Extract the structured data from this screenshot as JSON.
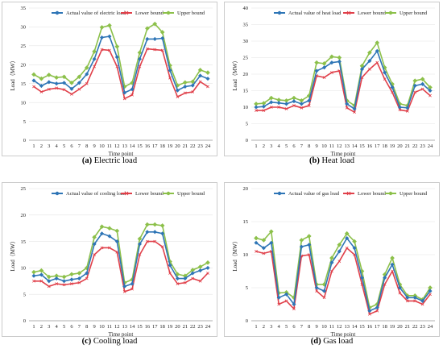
{
  "colors": {
    "actual": "#2e75b6",
    "lower": "#e0404a",
    "upper": "#8cc04a"
  },
  "chart_data": [
    {
      "type": "line",
      "caption_letter": "(a)",
      "caption_text": "Electric load",
      "xlabel": "Time point",
      "ylabel": "Load（MW）",
      "ylim": [
        0,
        35
      ],
      "yticks": [
        0,
        5,
        10,
        15,
        20,
        25,
        30,
        35
      ],
      "x": [
        1,
        2,
        3,
        4,
        5,
        6,
        7,
        8,
        9,
        10,
        11,
        12,
        13,
        14,
        15,
        16,
        17,
        18,
        19,
        20,
        21,
        22,
        23,
        24
      ],
      "legend_position": "top",
      "grid": true,
      "series": [
        {
          "name": "Actual value of electric load",
          "color_key": "actual",
          "values": [
            15.8,
            14.4,
            15.4,
            15.0,
            15.2,
            13.6,
            15.2,
            17.5,
            21.5,
            27.2,
            27.5,
            22.0,
            12.6,
            13.5,
            21.5,
            26.8,
            26.8,
            27.0,
            18.5,
            13.2,
            14.2,
            14.5,
            17.1,
            16.3
          ]
        },
        {
          "name": "Lower bound",
          "color_key": "lower",
          "values": [
            14.2,
            12.8,
            13.5,
            13.8,
            13.4,
            12.2,
            13.5,
            15.0,
            19.5,
            24.0,
            23.8,
            19.5,
            11.0,
            12.0,
            19.5,
            24.2,
            24.0,
            23.8,
            16.5,
            11.5,
            12.5,
            12.8,
            15.5,
            14.2
          ]
        },
        {
          "name": "Upper bound",
          "color_key": "upper",
          "values": [
            17.4,
            16.3,
            17.3,
            16.6,
            16.8,
            15.2,
            16.8,
            19.2,
            23.5,
            29.9,
            30.4,
            24.8,
            14.2,
            15.2,
            23.2,
            29.6,
            30.8,
            28.6,
            19.8,
            14.5,
            15.3,
            15.5,
            18.6,
            17.9
          ]
        }
      ]
    },
    {
      "type": "line",
      "caption_letter": "(b)",
      "caption_text": "Heat load",
      "xlabel": "Time point",
      "ylabel": "Load（MW）",
      "ylim": [
        0,
        40
      ],
      "yticks": [
        0,
        5,
        10,
        15,
        20,
        25,
        30,
        35,
        40
      ],
      "x": [
        1,
        2,
        3,
        4,
        5,
        6,
        7,
        8,
        9,
        10,
        11,
        12,
        13,
        14,
        15,
        16,
        17,
        18,
        19,
        20,
        21,
        22,
        23,
        24
      ],
      "legend_position": "top",
      "grid": true,
      "series": [
        {
          "name": "Actual value of heat load",
          "color_key": "actual",
          "values": [
            10.0,
            10.2,
            11.5,
            11.3,
            11.0,
            11.8,
            11.0,
            12.0,
            21.0,
            22.0,
            23.5,
            23.8,
            11.0,
            9.5,
            21.5,
            24.0,
            27.0,
            20.5,
            16.0,
            10.0,
            9.8,
            16.5,
            17.0,
            15.0
          ]
        },
        {
          "name": "Lower bound",
          "color_key": "lower",
          "values": [
            9.0,
            9.0,
            10.0,
            10.0,
            9.5,
            10.5,
            9.8,
            10.5,
            19.5,
            19.0,
            20.5,
            21.0,
            9.8,
            8.5,
            19.0,
            21.5,
            23.5,
            18.5,
            14.5,
            9.2,
            8.8,
            14.5,
            15.5,
            13.5
          ]
        },
        {
          "name": "Upper bound",
          "color_key": "upper",
          "values": [
            11.0,
            11.2,
            12.8,
            12.2,
            12.0,
            12.8,
            12.0,
            13.5,
            23.5,
            23.2,
            25.3,
            25.0,
            12.0,
            10.5,
            22.5,
            26.5,
            29.5,
            22.0,
            17.0,
            11.0,
            10.5,
            18.0,
            18.5,
            16.0
          ]
        }
      ]
    },
    {
      "type": "line",
      "caption_letter": "(c)",
      "caption_text": "Cooling load",
      "xlabel": "Time point",
      "ylabel": "Load（MW）",
      "ylim": [
        0,
        25
      ],
      "yticks": [
        0,
        5,
        10,
        15,
        20,
        25
      ],
      "x": [
        1,
        2,
        3,
        4,
        5,
        6,
        7,
        8,
        9,
        10,
        11,
        12,
        13,
        14,
        15,
        16,
        17,
        18,
        19,
        20,
        21,
        22,
        23,
        24
      ],
      "legend_position": "top",
      "grid": true,
      "series": [
        {
          "name": "Actual value of cooling load",
          "color_key": "actual",
          "values": [
            8.5,
            8.7,
            7.5,
            8.0,
            7.5,
            7.8,
            8.0,
            9.0,
            14.5,
            16.5,
            16.0,
            15.0,
            6.5,
            7.0,
            14.5,
            16.8,
            16.8,
            16.5,
            10.5,
            8.0,
            8.0,
            9.0,
            9.5,
            10.0
          ]
        },
        {
          "name": "Lower bound",
          "color_key": "lower",
          "values": [
            7.5,
            7.5,
            6.5,
            7.0,
            6.8,
            7.0,
            7.2,
            8.0,
            12.5,
            13.8,
            13.8,
            13.0,
            5.5,
            6.0,
            12.5,
            15.0,
            15.0,
            14.0,
            9.0,
            7.0,
            7.2,
            8.0,
            7.5,
            9.0
          ]
        },
        {
          "name": "Upper bound",
          "color_key": "upper",
          "values": [
            9.2,
            9.5,
            8.3,
            8.5,
            8.3,
            8.8,
            9.0,
            10.0,
            15.8,
            17.8,
            17.5,
            17.0,
            7.2,
            7.8,
            15.5,
            18.2,
            18.2,
            18.0,
            11.2,
            8.8,
            8.5,
            9.6,
            10.2,
            11.0
          ]
        }
      ]
    },
    {
      "type": "line",
      "caption_letter": "(d)",
      "caption_text": "Gas load",
      "xlabel": "Time point",
      "ylabel": "Load（MW）",
      "ylim": [
        0,
        20
      ],
      "yticks": [
        0,
        5,
        10,
        15,
        20
      ],
      "x": [
        1,
        2,
        3,
        4,
        5,
        6,
        7,
        8,
        9,
        10,
        11,
        12,
        13,
        14,
        15,
        16,
        17,
        18,
        19,
        20,
        21,
        22,
        23,
        24
      ],
      "legend_position": "top",
      "grid": true,
      "series": [
        {
          "name": "Actual value of gas load",
          "color_key": "actual",
          "values": [
            11.8,
            11.0,
            11.8,
            3.5,
            4.0,
            2.5,
            11.2,
            11.5,
            5.0,
            4.5,
            8.8,
            10.5,
            12.5,
            11.0,
            6.5,
            1.5,
            2.0,
            6.5,
            8.5,
            5.0,
            3.5,
            3.5,
            3.0,
            4.5
          ]
        },
        {
          "name": "Lower bound",
          "color_key": "lower",
          "values": [
            10.5,
            10.2,
            10.5,
            2.5,
            3.0,
            1.8,
            9.8,
            10.0,
            4.5,
            3.5,
            7.5,
            9.0,
            11.0,
            10.0,
            5.5,
            1.0,
            1.5,
            5.5,
            7.5,
            4.2,
            3.0,
            3.0,
            2.5,
            4.0
          ]
        },
        {
          "name": "Upper bound",
          "color_key": "upper",
          "values": [
            12.5,
            12.2,
            13.5,
            4.2,
            4.3,
            3.5,
            12.2,
            12.8,
            5.5,
            5.5,
            9.5,
            11.5,
            13.2,
            12.0,
            7.5,
            2.0,
            2.5,
            7.0,
            9.5,
            5.5,
            3.8,
            3.8,
            3.2,
            5.0
          ]
        }
      ]
    }
  ]
}
